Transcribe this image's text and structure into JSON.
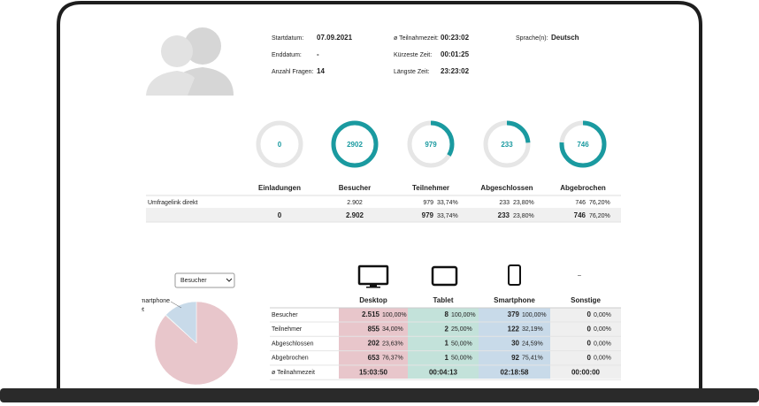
{
  "profile": {
    "fields": [
      [
        {
          "label": "Startdatum:",
          "value": "07.09.2021"
        },
        {
          "label": "Enddatum:",
          "value": "-"
        },
        {
          "label": "Anzahl Fragen:",
          "value": "14"
        }
      ],
      [
        {
          "label": "ø Teilnahmezeit:",
          "value": "00:23:02"
        },
        {
          "label": "Kürzeste Zeit:",
          "value": "00:01:25"
        },
        {
          "label": "Längste Zeit:",
          "value": "23:23:02"
        }
      ],
      [
        {
          "label": "Sprache(n):",
          "value": "Deutsch"
        }
      ]
    ]
  },
  "summary": {
    "gauges": [
      {
        "value": "0",
        "percent": 0
      },
      {
        "value": "2902",
        "percent": 100
      },
      {
        "value": "979",
        "percent": 33.74
      },
      {
        "value": "233",
        "percent": 23.8
      },
      {
        "value": "746",
        "percent": 76.2
      }
    ],
    "headers": [
      "Einladungen",
      "Besucher",
      "Teilnehmer",
      "Abgeschlossen",
      "Abgebrochen"
    ],
    "rows": [
      {
        "label": "Umfragelink direkt",
        "cells": [
          null,
          {
            "count": "2.902"
          },
          {
            "count": "979",
            "pct": "33,74%"
          },
          {
            "count": "233",
            "pct": "23,80%"
          },
          {
            "count": "746",
            "pct": "76,20%"
          }
        ]
      },
      {
        "cells": [
          {
            "count": "0"
          },
          {
            "count": "2.902"
          },
          {
            "count": "979",
            "pct": "33,74%"
          },
          {
            "count": "233",
            "pct": "23,80%"
          },
          {
            "count": "746",
            "pct": "76,20%"
          }
        ]
      }
    ]
  },
  "devices": {
    "select": "Besucher",
    "pie": {
      "slices": [
        {
          "value": 2515,
          "color": "#e8c6cb"
        },
        {
          "label": "Tablet",
          "value": 8,
          "color": "#c3e2da"
        },
        {
          "label": "Smartphone",
          "value": 379,
          "color": "#c8dae9"
        }
      ]
    },
    "other_icon": "–",
    "columns": [
      "Desktop",
      "Tablet",
      "Smartphone",
      "Sonstige"
    ],
    "rows": [
      {
        "label": "Besucher",
        "cells": [
          [
            "2.515",
            "100,00%"
          ],
          [
            "8",
            "100,00%"
          ],
          [
            "379",
            "100,00%"
          ],
          [
            "0",
            "0,00%"
          ]
        ]
      },
      {
        "label": "Teilnehmer",
        "cells": [
          [
            "855",
            "34,00%"
          ],
          [
            "2",
            "25,00%"
          ],
          [
            "122",
            "32,19%"
          ],
          [
            "0",
            "0,00%"
          ]
        ]
      },
      {
        "label": "Abgeschlossen",
        "cells": [
          [
            "202",
            "23,63%"
          ],
          [
            "1",
            "50,00%"
          ],
          [
            "30",
            "24,59%"
          ],
          [
            "0",
            "0,00%"
          ]
        ]
      },
      {
        "label": "Abgebrochen",
        "cells": [
          [
            "653",
            "76,37%"
          ],
          [
            "1",
            "50,00%"
          ],
          [
            "92",
            "75,41%"
          ],
          [
            "0",
            "0,00%"
          ]
        ]
      },
      {
        "label": "ø Teilnahmezeit",
        "cells": [
          "15:03:50",
          "00:04:13",
          "02:18:58",
          "00:00:00"
        ]
      }
    ]
  }
}
